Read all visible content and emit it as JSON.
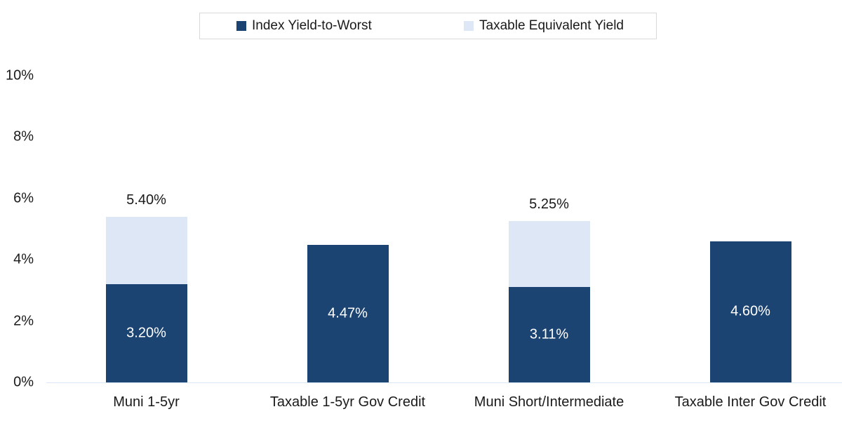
{
  "chart_data": {
    "type": "bar",
    "stacked": true,
    "title": "",
    "categories": [
      "Muni 1-5yr",
      "Taxable 1-5yr Gov Credit",
      "Muni Short/Intermediate",
      "Taxable Inter Gov Credit"
    ],
    "series": [
      {
        "name": "Index Yield-to-Worst",
        "color": "#1c4472",
        "values": [
          3.2,
          4.47,
          3.11,
          4.6
        ],
        "value_labels": [
          "3.20%",
          "4.47%",
          "3.11%",
          "4.60%"
        ]
      },
      {
        "name": "Taxable Equivalent Yield",
        "color": "#dde7f5",
        "values": [
          2.2,
          0,
          2.14,
          0
        ]
      }
    ],
    "totals": [
      5.4,
      4.47,
      5.25,
      4.6
    ],
    "total_labels": [
      "5.40%",
      "",
      "5.25%",
      ""
    ],
    "yticks": [
      "0%",
      "2%",
      "4%",
      "6%",
      "8%",
      "10%"
    ],
    "ytick_values": [
      0,
      2,
      4,
      6,
      8,
      10
    ],
    "ylim": [
      0,
      10
    ],
    "xlabel": "",
    "ylabel": "",
    "grid": false,
    "legend_position": "top",
    "legend_border_color": "#d9d9d9",
    "axis_line_color": "#d9e7f6",
    "label_inside_color": "#ffffff",
    "text_color": "#1a1a1a"
  }
}
